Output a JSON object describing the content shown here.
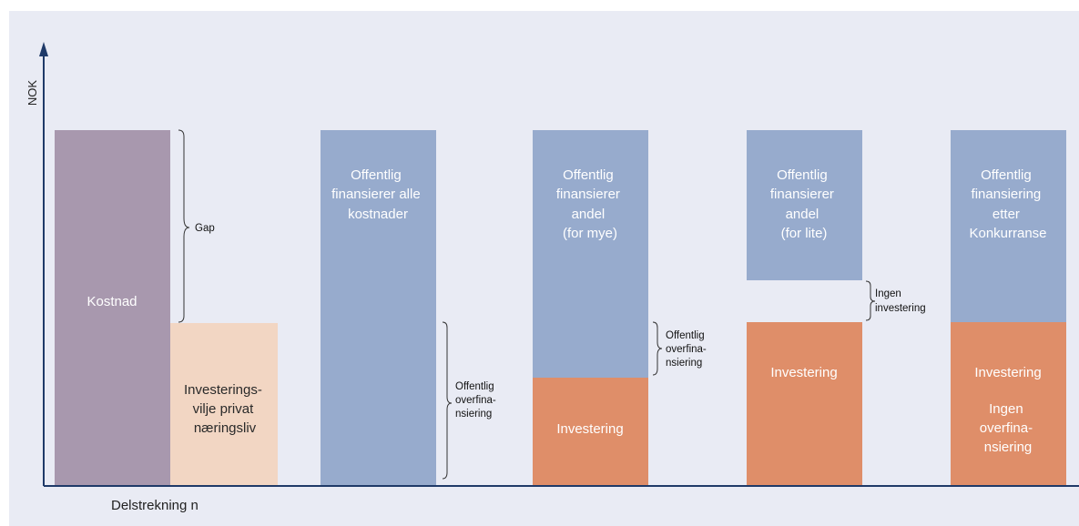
{
  "axis": {
    "y_label": "NOK",
    "x_label": "Delstrekning n"
  },
  "colors": {
    "cost": "#a898ae",
    "private": "#f2d6c3",
    "public": "#97abcd",
    "investment": "#df8e69",
    "axis": "#1f3a68",
    "background": "#e9ebf4"
  },
  "bars": {
    "cost": {
      "label": "Kostnad"
    },
    "private": {
      "label_lines": [
        "Investerings-",
        "vilje privat",
        "næringsliv"
      ]
    },
    "s1": {
      "public_lines": [
        "Offentlig",
        "finansierer alle",
        "kostnader"
      ]
    },
    "s2": {
      "public_lines": [
        "Offentlig",
        "finansierer",
        "andel",
        "(for mye)"
      ],
      "invest": "Investering"
    },
    "s3": {
      "public_lines": [
        "Offentlig",
        "finansierer",
        "andel",
        "(for lite)"
      ],
      "invest": "Investering"
    },
    "s4": {
      "public_lines": [
        "Offentlig",
        "finansiering",
        "etter",
        "Konkurranse"
      ],
      "invest": "Investering",
      "invest_sub_lines": [
        "Ingen",
        "overfina-",
        "nsiering"
      ]
    }
  },
  "annotations": {
    "gap": "Gap",
    "overfin1_lines": [
      "Offentlig",
      "overfina-",
      "nsiering"
    ],
    "overfin2_lines": [
      "Offentlig",
      "overfina-",
      "nsiering"
    ],
    "no_invest_lines": [
      "Ingen",
      "investering"
    ]
  }
}
